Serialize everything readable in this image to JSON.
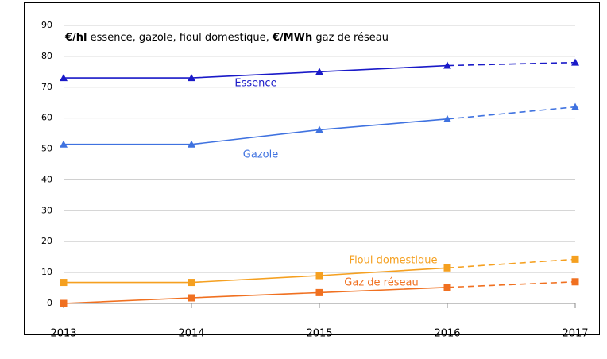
{
  "chart_data": {
    "type": "line",
    "title_parts": [
      "€/hl",
      " essence, gazole, fioul domestique, ",
      "€/MWh",
      " gaz de réseau"
    ],
    "x": [
      2013,
      2014,
      2015,
      2016,
      2017
    ],
    "xlim": [
      2013,
      2017
    ],
    "xticks": [
      2013,
      2014,
      2015,
      2016,
      2017
    ],
    "ylim": [
      0,
      90
    ],
    "yticks": [
      0,
      10,
      20,
      30,
      40,
      50,
      60,
      70,
      80,
      90
    ],
    "grid": true,
    "dashed_from": 2016,
    "series": [
      {
        "name": "Essence",
        "color": "#1a1ac8",
        "marker": "triangle",
        "values": [
          73,
          73,
          75,
          77,
          78
        ]
      },
      {
        "name": "Gazole",
        "color": "#3f72e0",
        "marker": "triangle",
        "values": [
          51.5,
          51.5,
          56.2,
          59.7,
          63.6
        ]
      },
      {
        "name": "Fioul domestique",
        "color": "#f5a020",
        "marker": "square",
        "values": [
          6.8,
          6.8,
          9,
          11.5,
          14.3
        ]
      },
      {
        "name": "Gaz de réseau",
        "color": "#f07020",
        "marker": "square",
        "values": [
          0,
          1.8,
          3.5,
          5.2,
          7
        ]
      }
    ]
  }
}
